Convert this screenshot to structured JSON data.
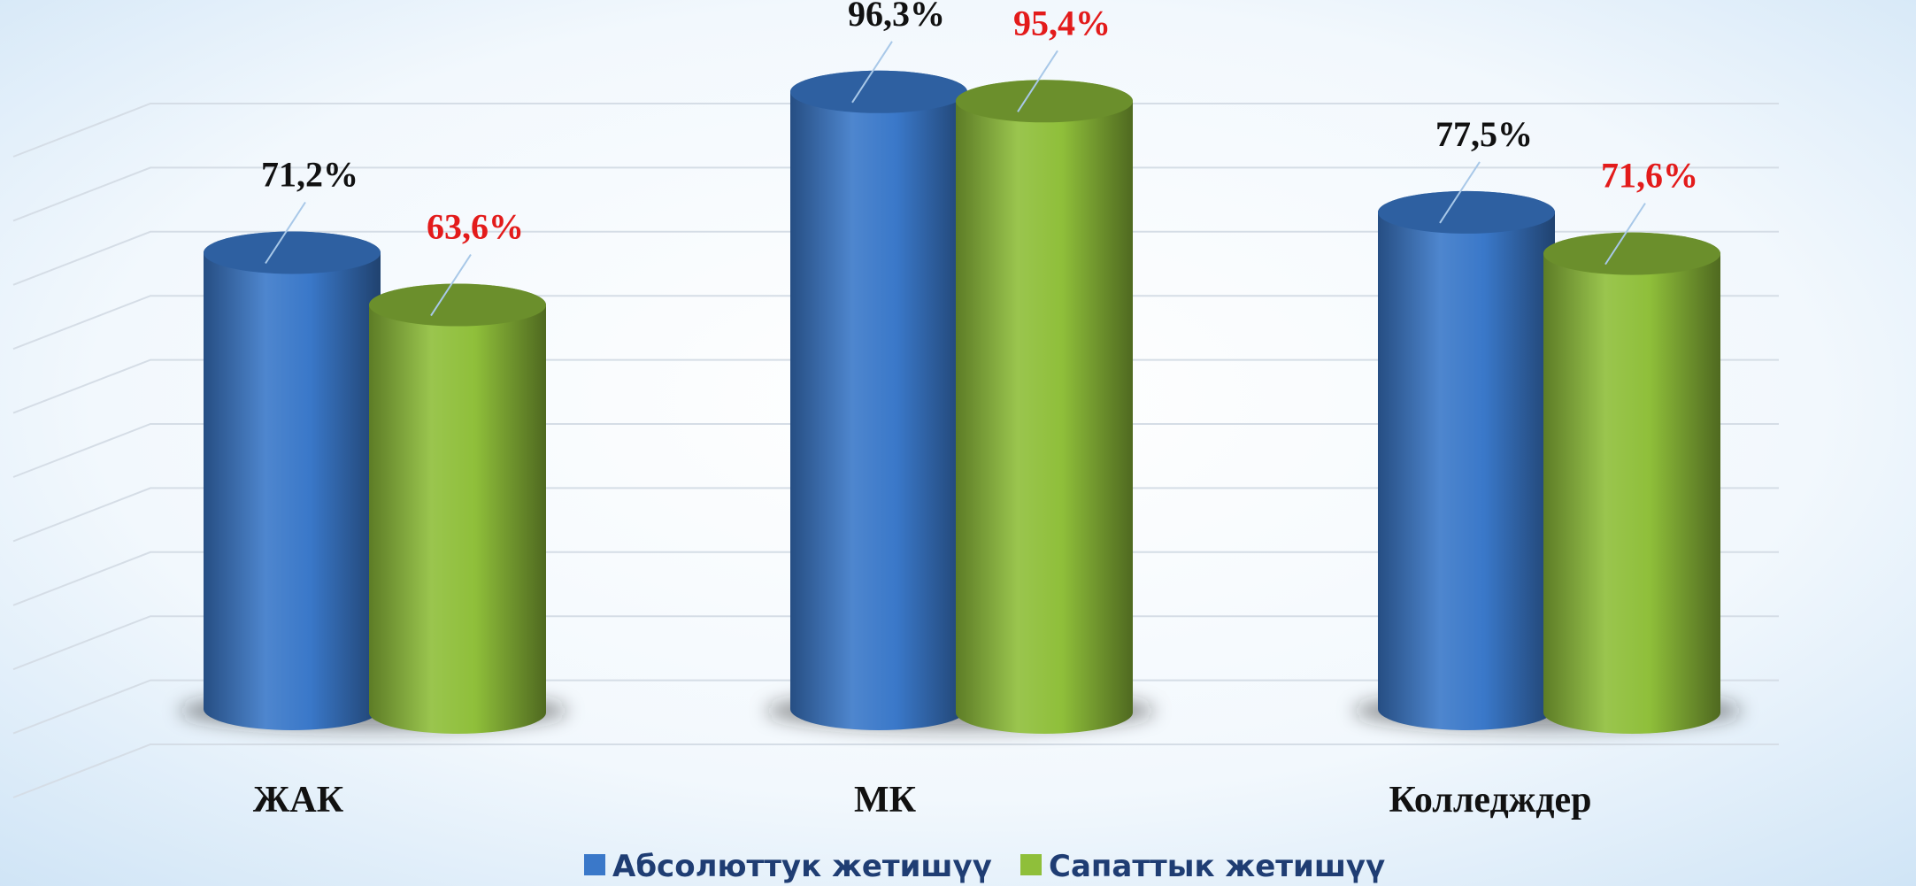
{
  "chart_data": {
    "type": "bar",
    "categories": [
      "ЖАК",
      "МК",
      "Колледждер"
    ],
    "series": [
      {
        "name": "Абсолюттук жетишүү",
        "color": "#3a78c9",
        "values": [
          71.2,
          96.3,
          77.5
        ],
        "value_labels": [
          "71,2%",
          "96,3%",
          "77,5%"
        ],
        "label_color": "#111111"
      },
      {
        "name": "Сапаттык жетишүү",
        "color": "#8fbf3a",
        "values": [
          63.6,
          95.4,
          71.6
        ],
        "value_labels": [
          "63,6%",
          "95,4%",
          "71,6%"
        ],
        "label_color": "#e31b1b"
      }
    ],
    "ylim": [
      0,
      100
    ],
    "yticks": [
      0,
      10,
      20,
      30,
      40,
      50,
      60,
      70,
      80,
      90,
      100
    ],
    "grid": true,
    "legend": "bottom"
  }
}
